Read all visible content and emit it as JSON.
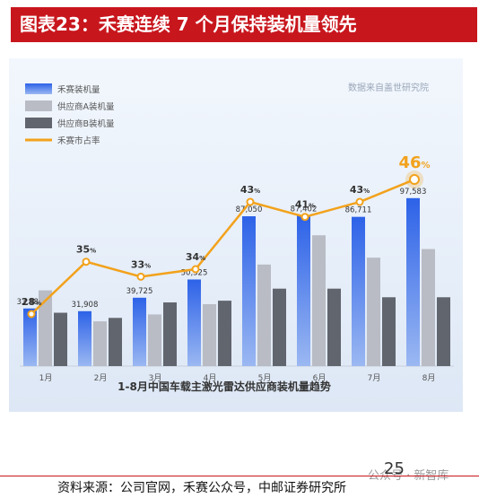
{
  "header": {
    "title": "图表23：禾赛连续 7 个月保持装机量领先"
  },
  "footer": {
    "source": "资料来源：公司官网，禾赛公众号，中邮证券研究所",
    "page_number": "25",
    "watermark": "公众号 · 新智库"
  },
  "chart_data": {
    "type": "bar",
    "title": "1-8月中国车载主激光雷达供应商装机量趋势",
    "data_source": "数据来自盖世研究院",
    "categories": [
      "1月",
      "2月",
      "3月",
      "4月",
      "5月",
      "6月",
      "7月",
      "8月"
    ],
    "series": [
      {
        "name": "禾赛装机量",
        "type": "bar",
        "color": "#2f66e6",
        "values": [
          33485,
          31908,
          39725,
          50325,
          87050,
          87402,
          86711,
          97583
        ],
        "labels": [
          "33,485",
          "31,908",
          "39,725",
          "50,325",
          "87,050",
          "87,402",
          "86,711",
          "97,583"
        ]
      },
      {
        "name": "供应商A装机量",
        "type": "bar",
        "color": "#b9bcc4",
        "values": [
          44000,
          26000,
          30000,
          36000,
          59000,
          76000,
          63000,
          68000
        ]
      },
      {
        "name": "供应商B装机量",
        "type": "bar",
        "color": "#61656d",
        "values": [
          31000,
          28000,
          37000,
          38000,
          45000,
          45000,
          40000,
          40000
        ]
      },
      {
        "name": "禾赛市占率",
        "type": "line",
        "color": "#f2a21c",
        "values": [
          28,
          35,
          33,
          34,
          43,
          41,
          43,
          46
        ],
        "labels": [
          "28%",
          "35%",
          "33%",
          "34%",
          "43%",
          "41%",
          "43%",
          "46%"
        ]
      }
    ],
    "ylim": [
      0,
      110000
    ],
    "legend_position": "top-left",
    "grid": false
  }
}
